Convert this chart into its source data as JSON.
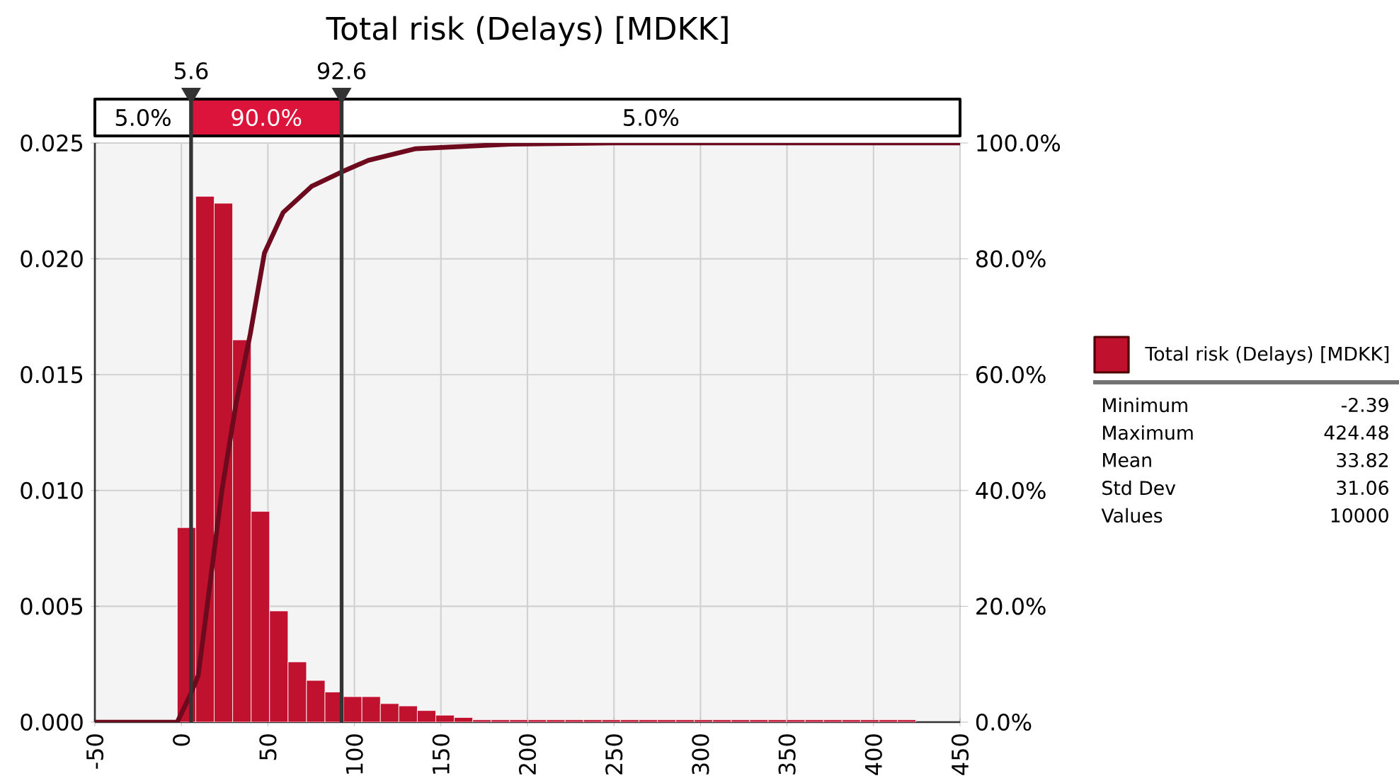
{
  "chart_data": {
    "type": "histogram",
    "title": "Total risk (Delays) [MDKK]",
    "series": [
      {
        "name": "Total risk (Delays) [MDKK]",
        "color": "#c0112f",
        "bins": [
          -2.39,
          8.28,
          18.95,
          29.63,
          40.3,
          50.97,
          61.64,
          72.31,
          82.99,
          93.66,
          104.33,
          115.0,
          125.67,
          136.35,
          147.02,
          157.69,
          168.36,
          179.03,
          189.71,
          200.38,
          211.05,
          221.72,
          232.39,
          243.07,
          253.74,
          264.41,
          275.08,
          285.75,
          296.43,
          307.1,
          317.77,
          328.44,
          339.11,
          349.79,
          360.46,
          371.13,
          381.8,
          392.47,
          403.15,
          413.82,
          424.48
        ],
        "values": [
          0.0084,
          0.0227,
          0.0224,
          0.0165,
          0.0091,
          0.0048,
          0.0026,
          0.0018,
          0.0013,
          0.0011,
          0.0011,
          0.0008,
          0.0007,
          0.0005,
          0.0003,
          0.0002,
          0.0001,
          0.0001,
          0.0001,
          0.0001,
          0.0001,
          0.0001,
          0.0001,
          0.0001,
          0.0001,
          0.0001,
          0.0001,
          0.0001,
          0.0001,
          0.0001,
          0.0001,
          0.0001,
          0.0001,
          0.0001,
          0.0001,
          0.0001,
          0.0001,
          0.0001,
          0.0001,
          0.0001
        ]
      },
      {
        "type": "line",
        "axis": "y2",
        "color": "#6e0a1e",
        "x": [
          -50,
          -2.39,
          5.6,
          9.7,
          16.6,
          23.4,
          31.6,
          39.8,
          48,
          58.8,
          75.2,
          92.6,
          108,
          135,
          190,
          250,
          450
        ],
        "values": [
          0,
          0,
          5,
          8,
          24,
          40,
          55,
          67,
          81,
          88,
          92.5,
          95,
          97,
          99,
          99.8,
          100,
          100
        ]
      }
    ],
    "xlim": [
      -50,
      450
    ],
    "xticks": [
      -50,
      0,
      50,
      100,
      150,
      200,
      250,
      300,
      350,
      400,
      450
    ],
    "ylim": [
      0,
      0.025
    ],
    "yticks": [
      {
        "value": 0,
        "label": "0.000"
      },
      {
        "value": 0.005,
        "label": "0.005"
      },
      {
        "value": 0.01,
        "label": "0.010"
      },
      {
        "value": 0.015,
        "label": "0.015"
      },
      {
        "value": 0.02,
        "label": "0.020"
      },
      {
        "value": 0.025,
        "label": "0.025"
      }
    ],
    "y2lim": [
      0,
      100
    ],
    "y2ticks": [
      {
        "value": 0,
        "label": "0.0%"
      },
      {
        "value": 20,
        "label": "20.0%"
      },
      {
        "value": 40,
        "label": "40.0%"
      },
      {
        "value": 60,
        "label": "60.0%"
      },
      {
        "value": 80,
        "label": "80.0%"
      },
      {
        "value": 100,
        "label": "100.0%"
      }
    ],
    "ref_lines": [
      {
        "axis": "x",
        "value": 5.6,
        "label": "5.6",
        "color": "#333333"
      },
      {
        "axis": "x",
        "value": 92.6,
        "label": "92.6",
        "color": "#333333"
      }
    ],
    "annotations": [
      "5.0%",
      "90.0%",
      "5.0%",
      "Minimum",
      "-2.39",
      "Maximum",
      "424.48",
      "Mean",
      "33.82",
      "Std Dev",
      "31.06",
      "Values",
      "10000"
    ],
    "grid": true,
    "legend": "right"
  }
}
